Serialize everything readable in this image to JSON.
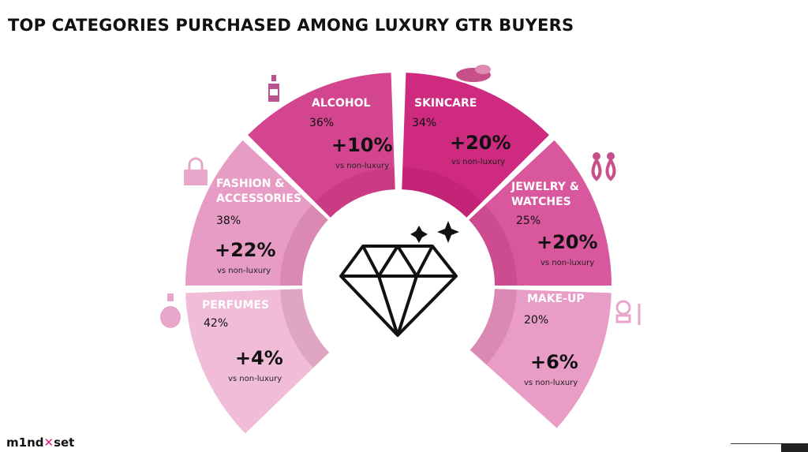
{
  "title": "TOP CATEGORIES PURCHASED AMONG LUXURY GTR BUYERS",
  "vs_label": "vs non-luxury",
  "logo": {
    "text_a": "m1nd",
    "text_b": "set"
  },
  "categories": [
    {
      "name": "ALCOHOL",
      "share": "36%",
      "diff": "+10%",
      "icon": "bottle-icon",
      "color": "#d4458f"
    },
    {
      "name": "SKINCARE",
      "share": "34%",
      "diff": "+20%",
      "icon": "cream-jar-icon",
      "color": "#cd2a80"
    },
    {
      "name": "FASHION & ACCESSORIES",
      "share": "38%",
      "diff": "+22%",
      "icon": "handbag-icon",
      "color": "#e79cc6"
    },
    {
      "name": "JEWELRY & WATCHES",
      "share": "25%",
      "diff": "+20%",
      "icon": "earrings-icon",
      "color": "#d9579d"
    },
    {
      "name": "PERFUMES",
      "share": "42%",
      "diff": "+4%",
      "icon": "perfume-icon",
      "color": "#f0bcd8"
    },
    {
      "name": "MAKE-UP",
      "share": "20%",
      "diff": "+6%",
      "icon": "compact-mirror-icon",
      "color": "#e89cc6"
    }
  ]
}
